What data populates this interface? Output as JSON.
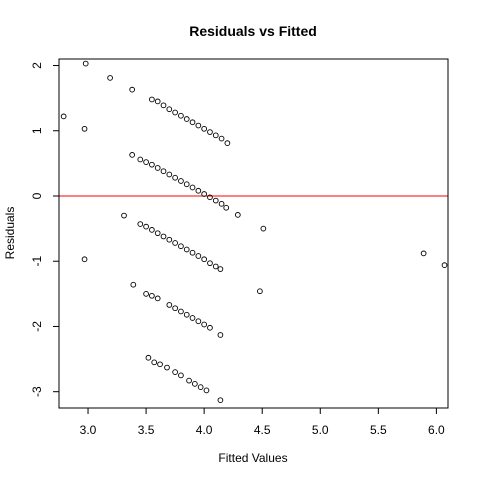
{
  "chart_data": {
    "type": "scatter",
    "title": "Residuals vs Fitted",
    "xlabel": "Fitted Values",
    "ylabel": "Residuals",
    "xlim": [
      2.75,
      6.1
    ],
    "ylim": [
      -3.25,
      2.1
    ],
    "xticks": [
      "3.0",
      "3.5",
      "4.0",
      "4.5",
      "5.0",
      "5.5",
      "6.0"
    ],
    "yticks": [
      "-3",
      "-2",
      "-1",
      "0",
      "1",
      "2"
    ],
    "reference_line": {
      "y": 0,
      "color": "#ff0000"
    },
    "point_color": "#000000",
    "points": [
      [
        2.79,
        1.22
      ],
      [
        2.98,
        2.03
      ],
      [
        2.97,
        1.03
      ],
      [
        2.97,
        -0.97
      ],
      [
        3.19,
        1.81
      ],
      [
        3.38,
        1.63
      ],
      [
        3.55,
        1.48
      ],
      [
        3.6,
        1.45
      ],
      [
        3.65,
        1.39
      ],
      [
        3.7,
        1.33
      ],
      [
        3.75,
        1.28
      ],
      [
        3.8,
        1.23
      ],
      [
        3.85,
        1.18
      ],
      [
        3.9,
        1.13
      ],
      [
        3.95,
        1.08
      ],
      [
        4.0,
        1.03
      ],
      [
        4.05,
        0.98
      ],
      [
        4.1,
        0.93
      ],
      [
        4.15,
        0.88
      ],
      [
        4.2,
        0.81
      ],
      [
        3.38,
        0.63
      ],
      [
        3.45,
        0.56
      ],
      [
        3.5,
        0.52
      ],
      [
        3.55,
        0.48
      ],
      [
        3.6,
        0.43
      ],
      [
        3.65,
        0.38
      ],
      [
        3.7,
        0.33
      ],
      [
        3.75,
        0.28
      ],
      [
        3.8,
        0.23
      ],
      [
        3.85,
        0.18
      ],
      [
        3.9,
        0.13
      ],
      [
        3.95,
        0.08
      ],
      [
        4.0,
        0.03
      ],
      [
        4.05,
        -0.02
      ],
      [
        4.1,
        -0.07
      ],
      [
        4.15,
        -0.12
      ],
      [
        4.19,
        -0.18
      ],
      [
        4.29,
        -0.29
      ],
      [
        3.31,
        -0.3
      ],
      [
        3.45,
        -0.43
      ],
      [
        3.5,
        -0.47
      ],
      [
        3.55,
        -0.52
      ],
      [
        3.6,
        -0.57
      ],
      [
        3.65,
        -0.62
      ],
      [
        3.7,
        -0.67
      ],
      [
        3.75,
        -0.72
      ],
      [
        3.8,
        -0.77
      ],
      [
        3.85,
        -0.82
      ],
      [
        3.9,
        -0.87
      ],
      [
        3.95,
        -0.92
      ],
      [
        4.0,
        -0.97
      ],
      [
        4.05,
        -1.03
      ],
      [
        4.1,
        -1.08
      ],
      [
        4.14,
        -1.12
      ],
      [
        4.51,
        -0.5
      ],
      [
        3.39,
        -1.36
      ],
      [
        3.5,
        -1.5
      ],
      [
        3.55,
        -1.53
      ],
      [
        3.6,
        -1.57
      ],
      [
        3.7,
        -1.67
      ],
      [
        3.75,
        -1.72
      ],
      [
        3.8,
        -1.77
      ],
      [
        3.85,
        -1.82
      ],
      [
        3.9,
        -1.87
      ],
      [
        3.95,
        -1.92
      ],
      [
        4.0,
        -1.97
      ],
      [
        4.05,
        -2.02
      ],
      [
        4.14,
        -2.13
      ],
      [
        4.48,
        -1.46
      ],
      [
        3.52,
        -2.48
      ],
      [
        3.57,
        -2.55
      ],
      [
        3.62,
        -2.58
      ],
      [
        3.68,
        -2.63
      ],
      [
        3.75,
        -2.7
      ],
      [
        3.8,
        -2.75
      ],
      [
        3.87,
        -2.83
      ],
      [
        3.92,
        -2.88
      ],
      [
        3.97,
        -2.93
      ],
      [
        4.02,
        -2.98
      ],
      [
        4.14,
        -3.13
      ],
      [
        5.89,
        -0.88
      ],
      [
        6.07,
        -1.06
      ]
    ]
  }
}
